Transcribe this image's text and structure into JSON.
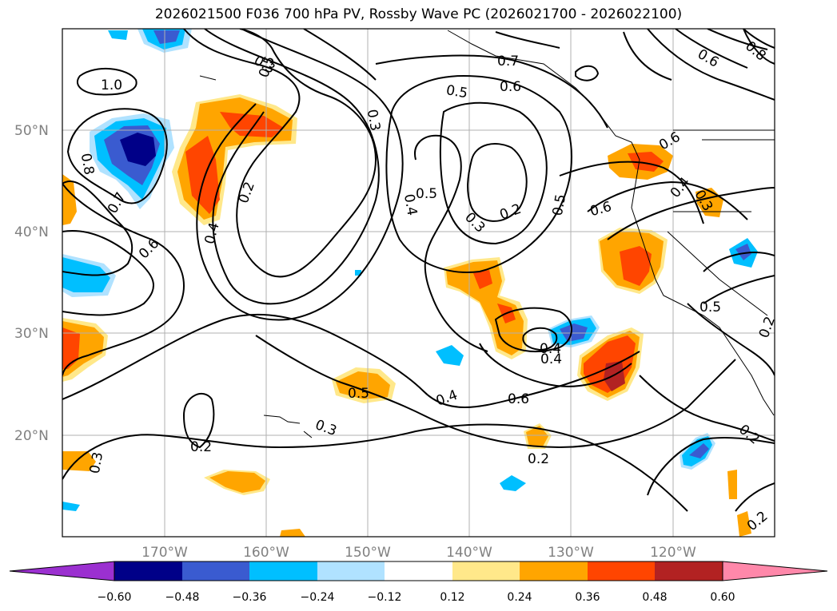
{
  "title": "2026021500 F036 700 hPa PV, Rossby Wave PC (2026021700 - 2026022100)",
  "latitude_labels": [
    "50°N",
    "40°N",
    "30°N",
    "20°N"
  ],
  "longitude_labels": [
    "170°W",
    "160°W",
    "150°W",
    "140°W",
    "130°W",
    "120°W"
  ],
  "contour_labels": [
    "1.0",
    "0.8",
    "0.7",
    "0.6",
    "0.4",
    "0.2",
    "0.3",
    "0.5",
    "0.4",
    "0.5",
    "0.3",
    "0.2",
    "0.5",
    "0.6",
    "0.7",
    "0.6",
    "0.4",
    "0.3",
    "0.6",
    "0.4",
    "0.5",
    "0.4",
    "0.3",
    "0.5",
    "0.2",
    "0.2",
    "0.3",
    "0.5",
    "0.4",
    "0.2",
    "0.3",
    "0.6",
    "0.2",
    "0.2",
    "0.8",
    "0.6"
  ],
  "colorbar": {
    "ticks": [
      "−0.60",
      "−0.48",
      "−0.36",
      "−0.24",
      "−0.12",
      "0.12",
      "0.24",
      "0.36",
      "0.48",
      "0.60"
    ],
    "colors": {
      "under": "#9b30d0",
      "bins": [
        "#000088",
        "#3a5bd0",
        "#00bfff",
        "#b0e2ff",
        "#ffffff",
        "#ffe88a",
        "#ffa500",
        "#ff4500",
        "#b22222",
        "#ff88aa"
      ],
      "over": "#ff88aa"
    }
  }
}
